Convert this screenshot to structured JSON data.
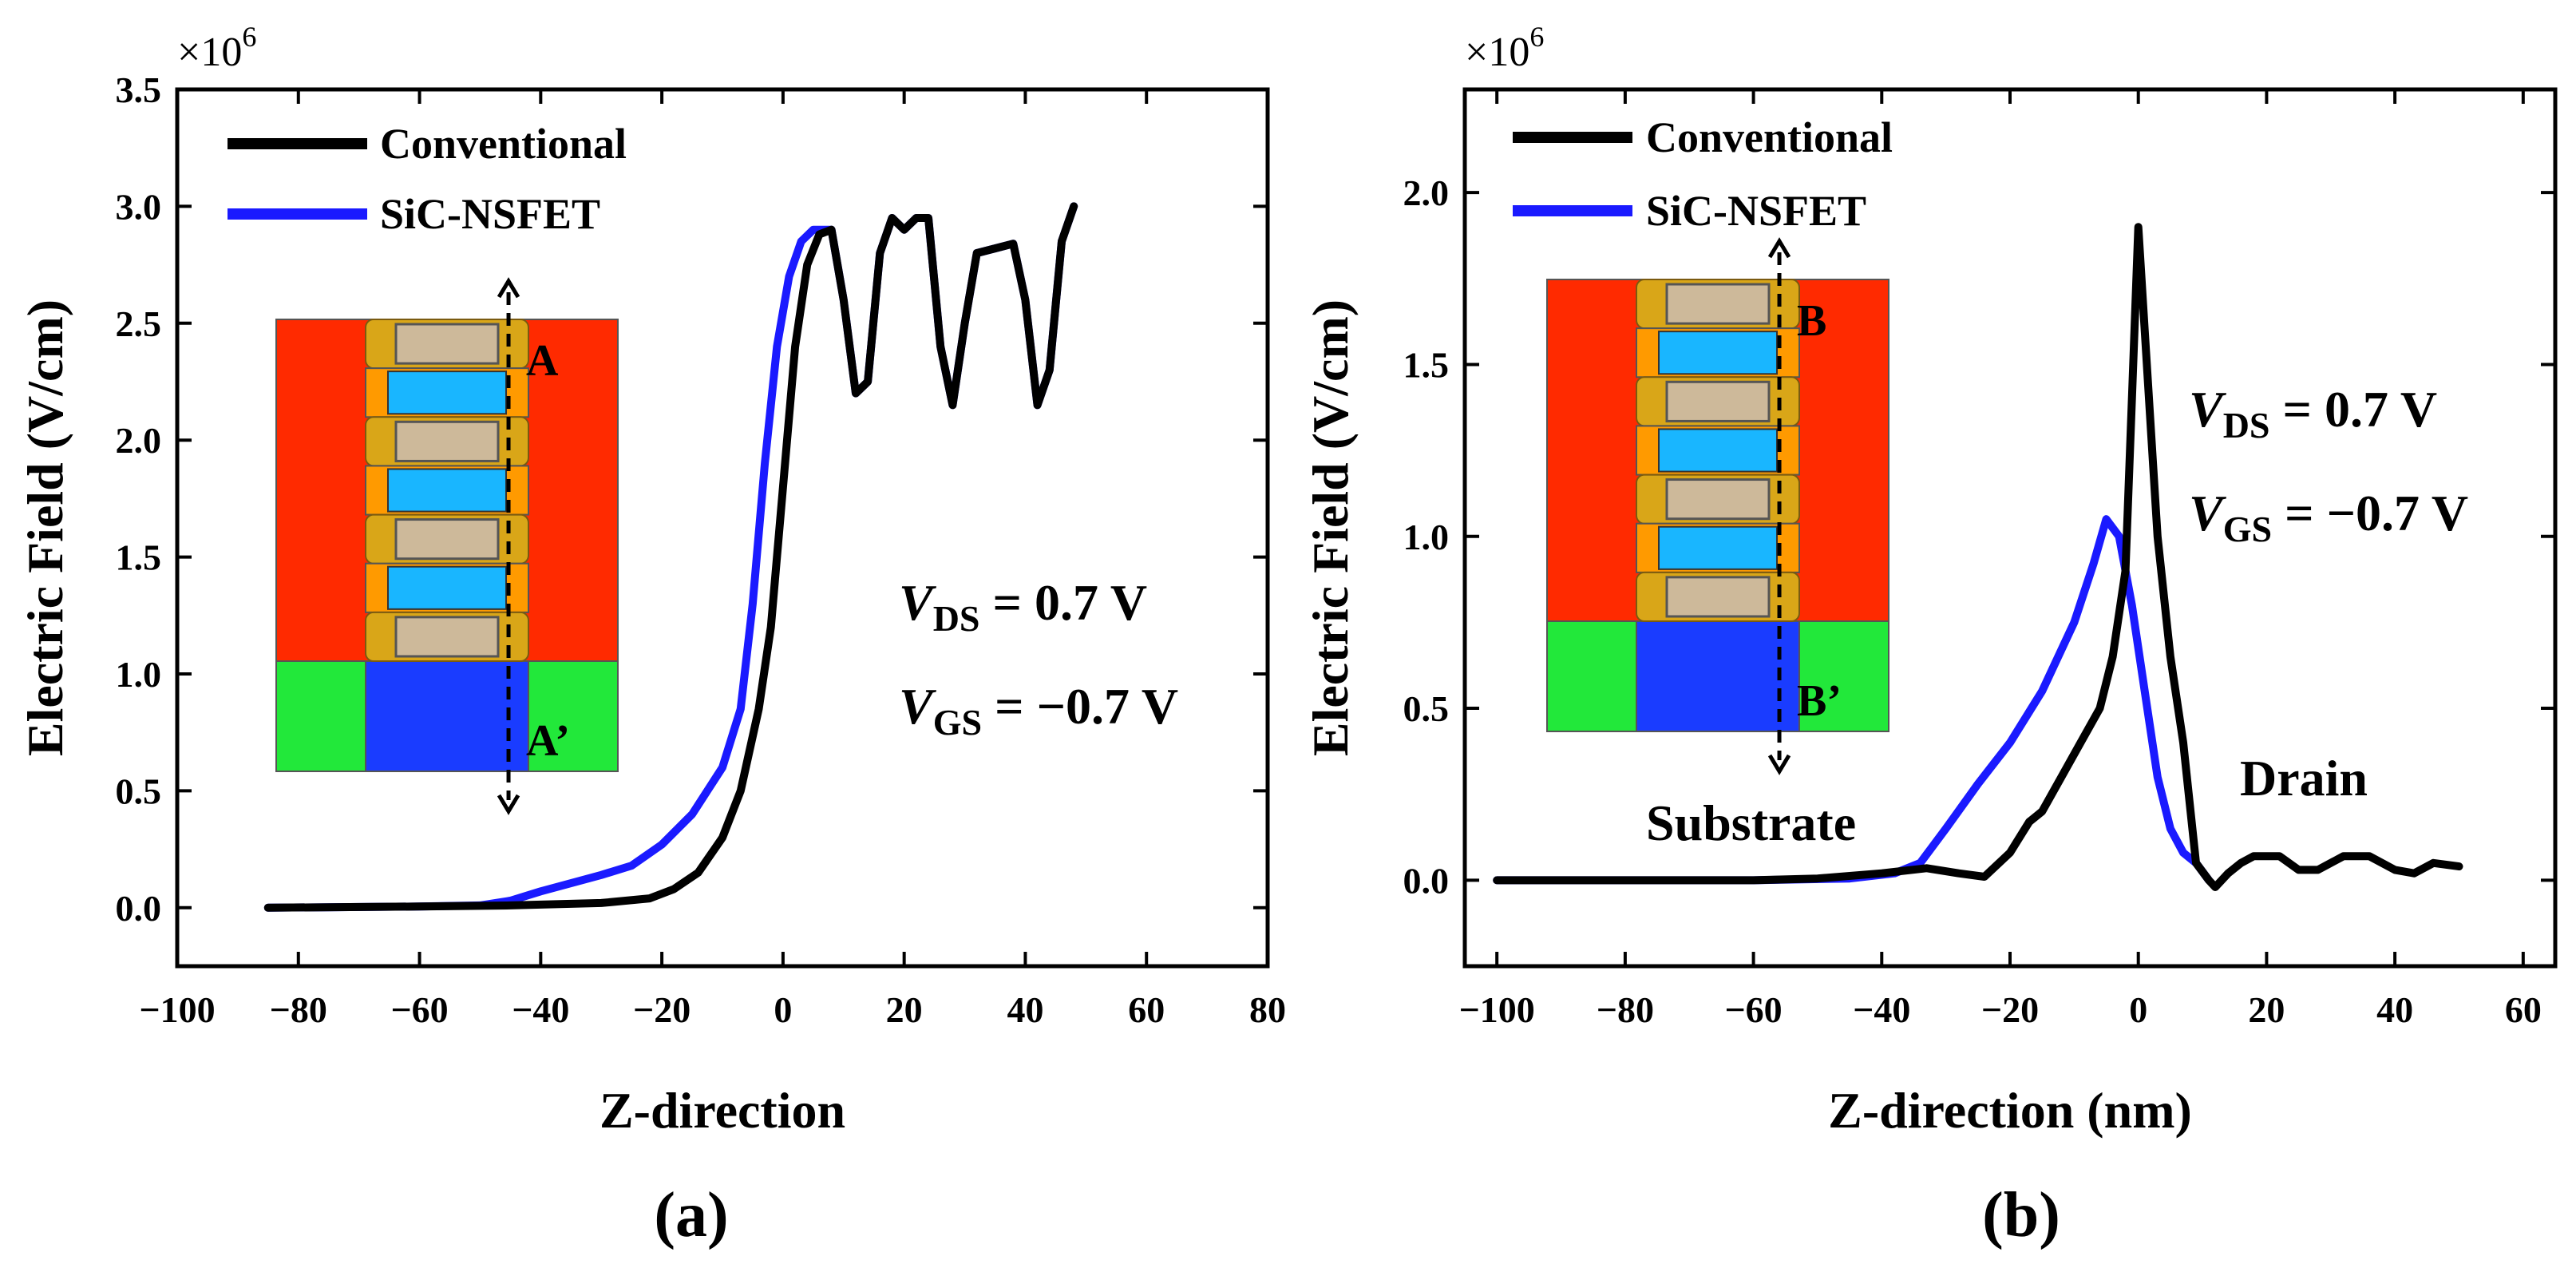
{
  "chart_data": [
    {
      "type": "line",
      "panel_label": "(a)",
      "xlabel": "Z-direction",
      "ylabel": "Electric Field (V/cm)",
      "y_multiplier": "×10",
      "y_multiplier_exp": "6",
      "xlim": [
        -100,
        80
      ],
      "ylim": [
        -0.25,
        3.5
      ],
      "x_ticks": [
        -100,
        -80,
        -60,
        -40,
        -20,
        0,
        20,
        40,
        60,
        80
      ],
      "x_tick_labels": [
        "−100",
        "−80",
        "−60",
        "−40",
        "−20",
        "0",
        "20",
        "40",
        "60",
        "80"
      ],
      "y_ticks": [
        0,
        0.5,
        1.0,
        1.5,
        2.0,
        2.5,
        3.0,
        3.5
      ],
      "y_tick_labels": [
        "0.0",
        "0.5",
        "1.0",
        "1.5",
        "2.0",
        "2.5",
        "3.0",
        "3.5"
      ],
      "legend_position": "top-left",
      "series": [
        {
          "name": "Conventional",
          "color": "#000000",
          "points": [
            [
              -85,
              0.0
            ],
            [
              -60,
              0.005
            ],
            [
              -45,
              0.01
            ],
            [
              -30,
              0.02
            ],
            [
              -22,
              0.04
            ],
            [
              -18,
              0.08
            ],
            [
              -14,
              0.15
            ],
            [
              -10,
              0.3
            ],
            [
              -7,
              0.5
            ],
            [
              -4,
              0.85
            ],
            [
              -2,
              1.2
            ],
            [
              0,
              1.8
            ],
            [
              2,
              2.4
            ],
            [
              4,
              2.75
            ],
            [
              6,
              2.88
            ],
            [
              8,
              2.9
            ],
            [
              10,
              2.6
            ],
            [
              12,
              2.2
            ],
            [
              14,
              2.25
            ],
            [
              16,
              2.8
            ],
            [
              18,
              2.95
            ],
            [
              20,
              2.9
            ],
            [
              22,
              2.95
            ],
            [
              24,
              2.95
            ],
            [
              26,
              2.4
            ],
            [
              28,
              2.15
            ],
            [
              30,
              2.5
            ],
            [
              32,
              2.8
            ],
            [
              35,
              2.82
            ],
            [
              38,
              2.84
            ],
            [
              40,
              2.6
            ],
            [
              42,
              2.15
            ],
            [
              44,
              2.3
            ],
            [
              46,
              2.85
            ],
            [
              48,
              3.0
            ]
          ]
        },
        {
          "name": "SiC-NSFET",
          "color": "#1a1aff",
          "points": [
            [
              -85,
              0.0
            ],
            [
              -60,
              0.005
            ],
            [
              -50,
              0.01
            ],
            [
              -45,
              0.03
            ],
            [
              -40,
              0.07
            ],
            [
              -30,
              0.14
            ],
            [
              -25,
              0.18
            ],
            [
              -20,
              0.27
            ],
            [
              -15,
              0.4
            ],
            [
              -10,
              0.6
            ],
            [
              -7,
              0.85
            ],
            [
              -5,
              1.3
            ],
            [
              -3,
              1.9
            ],
            [
              -1,
              2.4
            ],
            [
              1,
              2.7
            ],
            [
              3,
              2.85
            ],
            [
              5,
              2.9
            ],
            [
              8,
              2.9
            ],
            [
              10,
              2.6
            ],
            [
              12,
              2.2
            ],
            [
              14,
              2.25
            ],
            [
              16,
              2.8
            ],
            [
              18,
              2.95
            ],
            [
              20,
              2.9
            ],
            [
              22,
              2.95
            ],
            [
              24,
              2.95
            ],
            [
              26,
              2.4
            ],
            [
              28,
              2.15
            ],
            [
              30,
              2.5
            ],
            [
              32,
              2.8
            ],
            [
              35,
              2.82
            ],
            [
              38,
              2.84
            ],
            [
              40,
              2.6
            ],
            [
              42,
              2.15
            ],
            [
              44,
              2.3
            ],
            [
              46,
              2.85
            ],
            [
              48,
              3.0
            ]
          ]
        }
      ],
      "annotations": {
        "vds_var": "V",
        "vds_sub": "DS",
        "vds_val": " = 0.7 V",
        "vgs_var": "V",
        "vgs_sub": "GS",
        "vgs_val": " = −0.7 V",
        "inset_top": "A",
        "inset_bottom": "A’"
      }
    },
    {
      "type": "line",
      "panel_label": "(b)",
      "xlabel": "Z-direction (nm)",
      "ylabel": "Electric Field (V/cm)",
      "y_multiplier": "×10",
      "y_multiplier_exp": "6",
      "xlim": [
        -105,
        65
      ],
      "ylim": [
        -0.25,
        2.3
      ],
      "x_ticks": [
        -100,
        -80,
        -60,
        -40,
        -20,
        0,
        20,
        40,
        60
      ],
      "x_tick_labels": [
        "−100",
        "−80",
        "−60",
        "−40",
        "−20",
        "0",
        "20",
        "40",
        "60"
      ],
      "y_ticks": [
        0,
        0.5,
        1.0,
        1.5,
        2.0
      ],
      "y_tick_labels": [
        "0.0",
        "0.5",
        "1.0",
        "1.5",
        "2.0"
      ],
      "legend_position": "top-left",
      "series": [
        {
          "name": "Conventional",
          "color": "#000000",
          "points": [
            [
              -100,
              0.0
            ],
            [
              -60,
              0.0
            ],
            [
              -50,
              0.005
            ],
            [
              -40,
              0.02
            ],
            [
              -33,
              0.035
            ],
            [
              -28,
              0.02
            ],
            [
              -24,
              0.01
            ],
            [
              -20,
              0.08
            ],
            [
              -17,
              0.17
            ],
            [
              -15,
              0.2
            ],
            [
              -12,
              0.3
            ],
            [
              -9,
              0.4
            ],
            [
              -6,
              0.5
            ],
            [
              -4,
              0.65
            ],
            [
              -2,
              0.9
            ],
            [
              -1,
              1.4
            ],
            [
              0,
              1.9
            ],
            [
              1,
              1.6
            ],
            [
              3,
              1.0
            ],
            [
              5,
              0.65
            ],
            [
              7,
              0.4
            ],
            [
              9,
              0.05
            ],
            [
              11,
              0.0
            ],
            [
              12,
              -0.02
            ],
            [
              14,
              0.02
            ],
            [
              16,
              0.05
            ],
            [
              18,
              0.07
            ],
            [
              22,
              0.07
            ],
            [
              25,
              0.03
            ],
            [
              28,
              0.03
            ],
            [
              32,
              0.07
            ],
            [
              36,
              0.07
            ],
            [
              40,
              0.03
            ],
            [
              43,
              0.02
            ],
            [
              46,
              0.05
            ],
            [
              50,
              0.04
            ]
          ]
        },
        {
          "name": "SiC-NSFET",
          "color": "#1a1aff",
          "points": [
            [
              -100,
              0.0
            ],
            [
              -60,
              0.0
            ],
            [
              -45,
              0.005
            ],
            [
              -38,
              0.02
            ],
            [
              -34,
              0.05
            ],
            [
              -30,
              0.15
            ],
            [
              -25,
              0.28
            ],
            [
              -20,
              0.4
            ],
            [
              -15,
              0.55
            ],
            [
              -10,
              0.75
            ],
            [
              -7,
              0.92
            ],
            [
              -5,
              1.05
            ],
            [
              -3,
              1.0
            ],
            [
              -1,
              0.8
            ],
            [
              1,
              0.55
            ],
            [
              3,
              0.3
            ],
            [
              5,
              0.15
            ],
            [
              7,
              0.08
            ],
            [
              9,
              0.05
            ],
            [
              11,
              0.0
            ]
          ]
        }
      ],
      "annotations": {
        "vds_var": "V",
        "vds_sub": "DS",
        "vds_val": " = 0.7 V",
        "vgs_var": "V",
        "vgs_sub": "GS",
        "vgs_val": " = −0.7 V",
        "inset_top": "B",
        "inset_bottom": "B’",
        "substrate": "Substrate",
        "drain": "Drain"
      }
    }
  ],
  "colors": {
    "conventional": "#000000",
    "sic": "#1a1aff",
    "inset_red": "#ff2a00",
    "inset_green": "#22e83a",
    "inset_blue": "#1a3cff",
    "inset_cyan": "#19b6ff",
    "inset_gold": "#d9a618",
    "inset_tan": "#cdb99a"
  }
}
